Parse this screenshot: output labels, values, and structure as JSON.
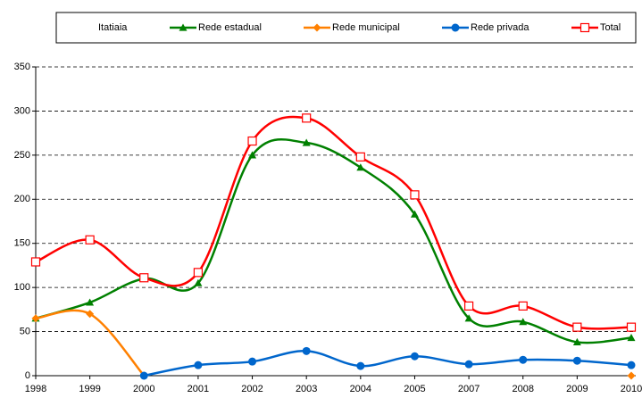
{
  "chart_data": {
    "type": "line",
    "legend_title": "Itatiaia",
    "categories": [
      "1998",
      "1999",
      "2000",
      "2001",
      "2002",
      "2003",
      "2004",
      "2005",
      "2007",
      "2008",
      "2009",
      "2010"
    ],
    "series": [
      {
        "name": "Rede estadual",
        "color": "#008000",
        "marker": "triangle",
        "values": [
          65,
          83,
          110,
          105,
          250,
          264,
          236,
          183,
          65,
          61,
          38,
          43
        ]
      },
      {
        "name": "Rede municipal",
        "color": "#ff8000",
        "marker": "diamond",
        "values": [
          65,
          70,
          0,
          null,
          null,
          null,
          null,
          null,
          null,
          null,
          null,
          0
        ]
      },
      {
        "name": "Rede privada",
        "color": "#0066cc",
        "marker": "circle",
        "values": [
          null,
          null,
          0,
          12,
          16,
          28,
          11,
          22,
          13,
          18,
          17,
          12
        ]
      },
      {
        "name": "Total",
        "color": "#ff0000",
        "marker": "square",
        "values": [
          129,
          154,
          111,
          117,
          266,
          292,
          248,
          205,
          79,
          79,
          55,
          55
        ]
      }
    ],
    "ylim": [
      0,
      350
    ],
    "yticks": [
      0,
      50,
      100,
      150,
      200,
      250,
      300,
      350
    ],
    "grid": true,
    "legend": "top"
  }
}
